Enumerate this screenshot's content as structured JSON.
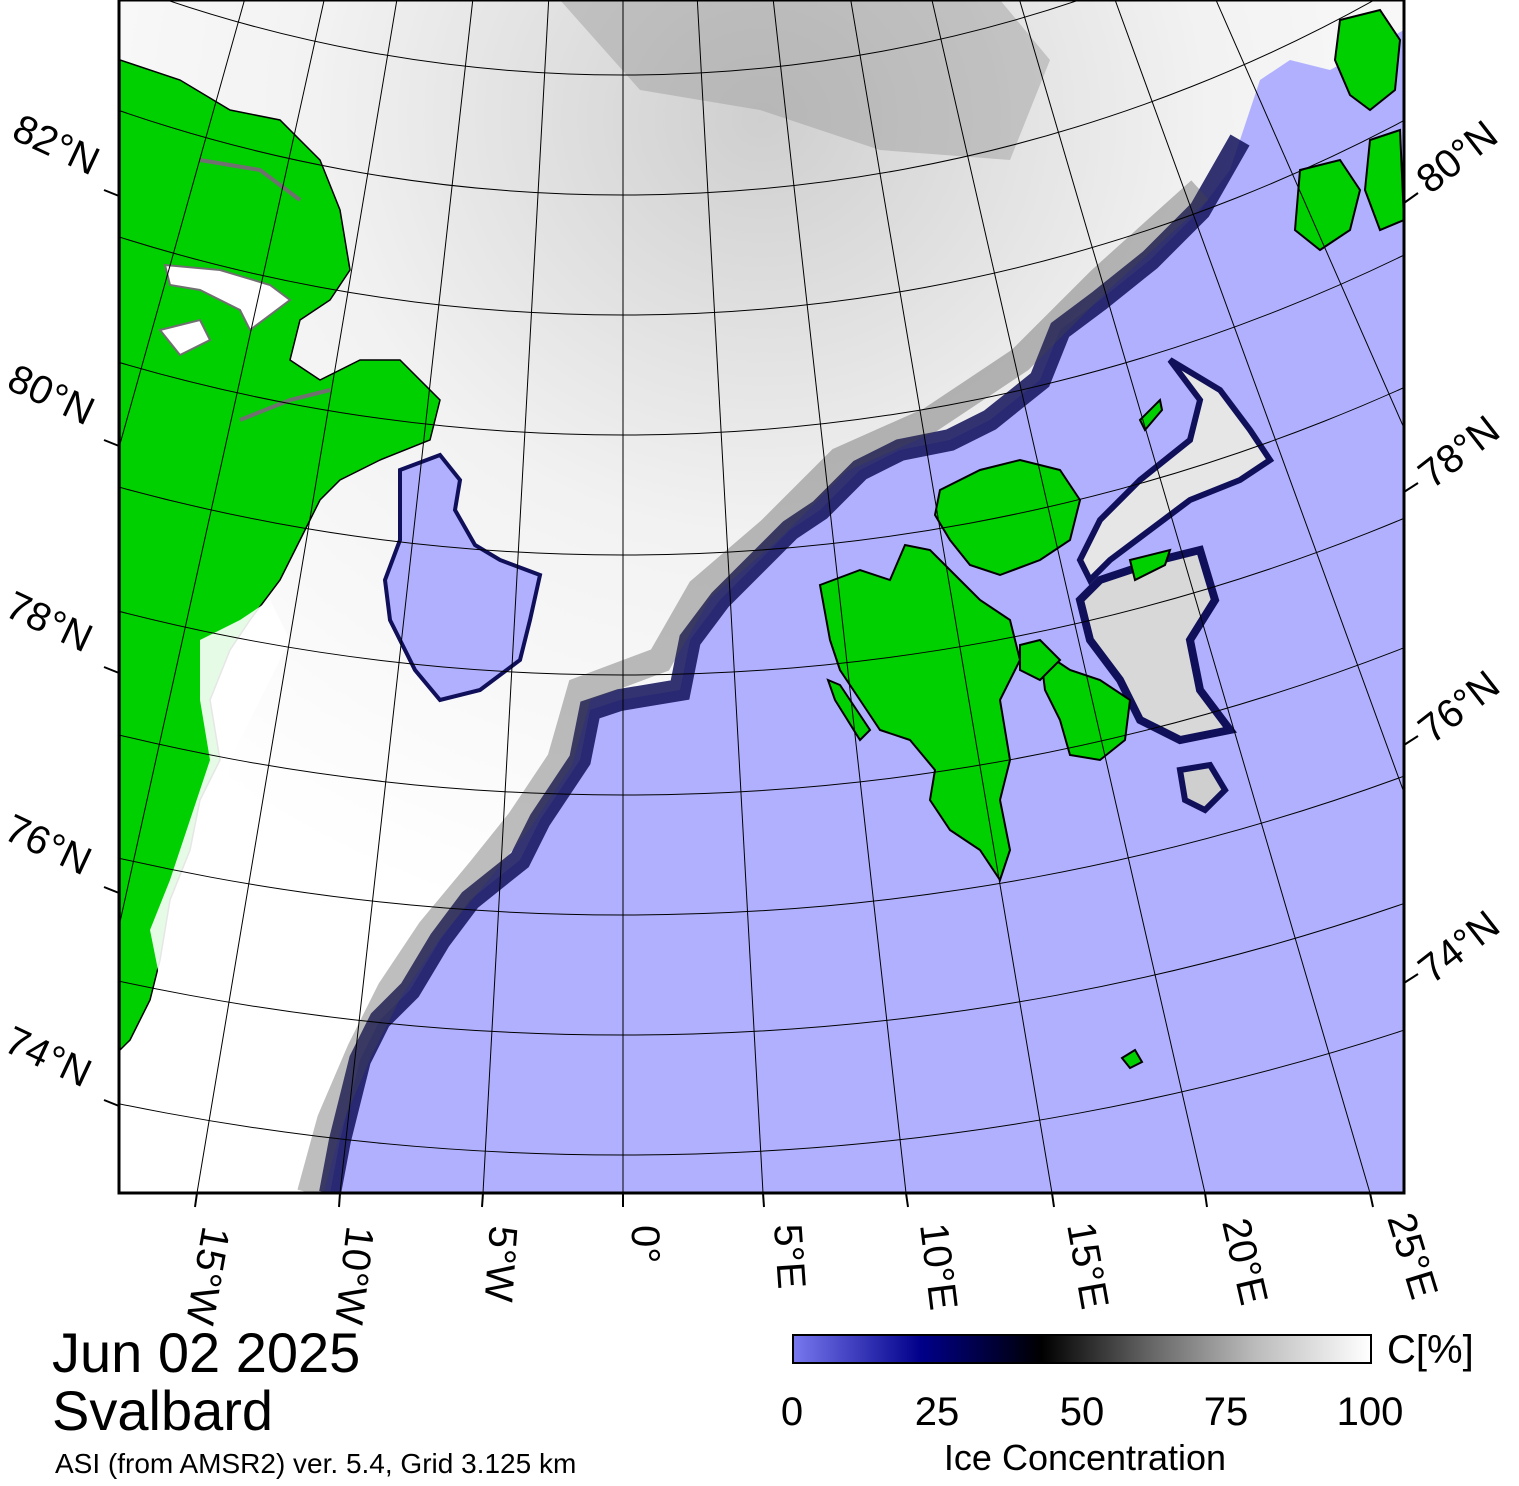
{
  "title": {
    "date": "Jun 02 2025",
    "region": "Svalbard"
  },
  "source": "ASI (from AMSR2) ver. 5.4,  Grid 3.125 km",
  "colorbar": {
    "title": "Ice Concentration",
    "unit": "C[%]",
    "ticks": [
      "0",
      "25",
      "50",
      "75",
      "100"
    ],
    "range": [
      0,
      100
    ]
  },
  "graticule": {
    "lat_labels_left": [
      "82°N",
      "80°N",
      "78°N",
      "76°N",
      "74°N"
    ],
    "lat_labels_right": [
      "80°N",
      "78°N",
      "76°N",
      "74°N"
    ],
    "lon_labels": [
      "15°W",
      "10°W",
      "5°W",
      "0°",
      "5°E",
      "10°E",
      "15°E",
      "20°E",
      "25°E"
    ]
  },
  "colors": {
    "land": "#00d000",
    "open_water": "#b0b0ff",
    "ice_low": "#00008a",
    "ice_mid": "#000000",
    "ice_high": "#ffffff",
    "coast_edge": "#808080"
  }
}
